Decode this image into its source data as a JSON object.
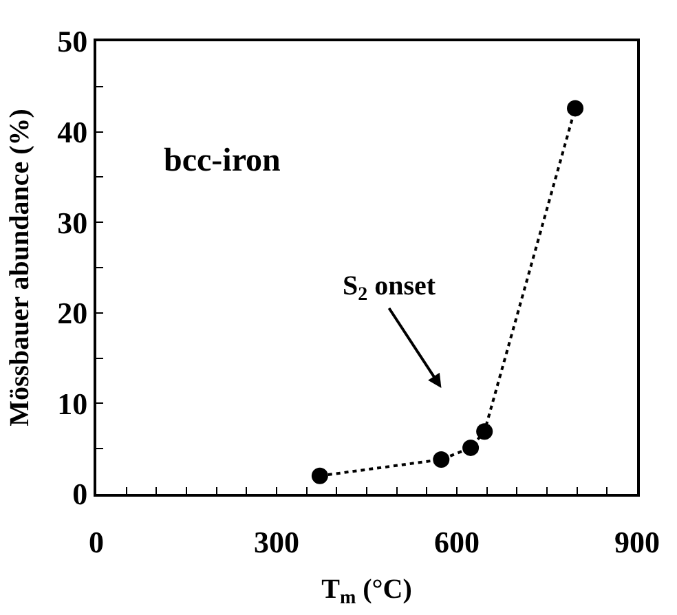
{
  "chart_data": {
    "type": "line",
    "xlabel": "T$_{m}$ (°C)",
    "ylabel": "Mössbauer abundance (%)",
    "x": [
      372,
      574,
      623,
      646,
      797
    ],
    "series": [
      {
        "color": "#000000",
        "values": [
          2.0,
          3.8,
          5.1,
          6.9,
          42.6
        ]
      }
    ],
    "marker": "circle",
    "line_style": "dotted",
    "legend": false,
    "xlim": [
      0,
      900
    ],
    "ylim": [
      0,
      50
    ],
    "xticks": [
      0,
      {
        "value": 50,
        "label": null
      },
      {
        "value": 100,
        "label": null
      },
      {
        "value": 150,
        "label": null
      },
      {
        "value": 200,
        "label": null
      },
      {
        "value": 250,
        "label": null
      },
      300,
      {
        "value": 350,
        "label": null
      },
      {
        "value": 400,
        "label": null
      },
      {
        "value": 450,
        "label": null
      },
      {
        "value": 500,
        "label": null
      },
      {
        "value": 550,
        "label": null
      },
      600,
      {
        "value": 650,
        "label": null
      },
      {
        "value": 700,
        "label": null
      },
      {
        "value": 750,
        "label": null
      },
      {
        "value": 800,
        "label": null
      },
      {
        "value": 850,
        "label": null
      },
      900
    ],
    "yticks": [
      0,
      {
        "value": 5,
        "label": null
      },
      10,
      {
        "value": 15,
        "label": null
      },
      20,
      {
        "value": 25,
        "label": null
      },
      30,
      {
        "value": 35,
        "label": null
      },
      40,
      {
        "value": 45,
        "label": null
      },
      50
    ],
    "annotations": [
      "bcc-iron",
      "S$_{2}$ onset"
    ]
  }
}
